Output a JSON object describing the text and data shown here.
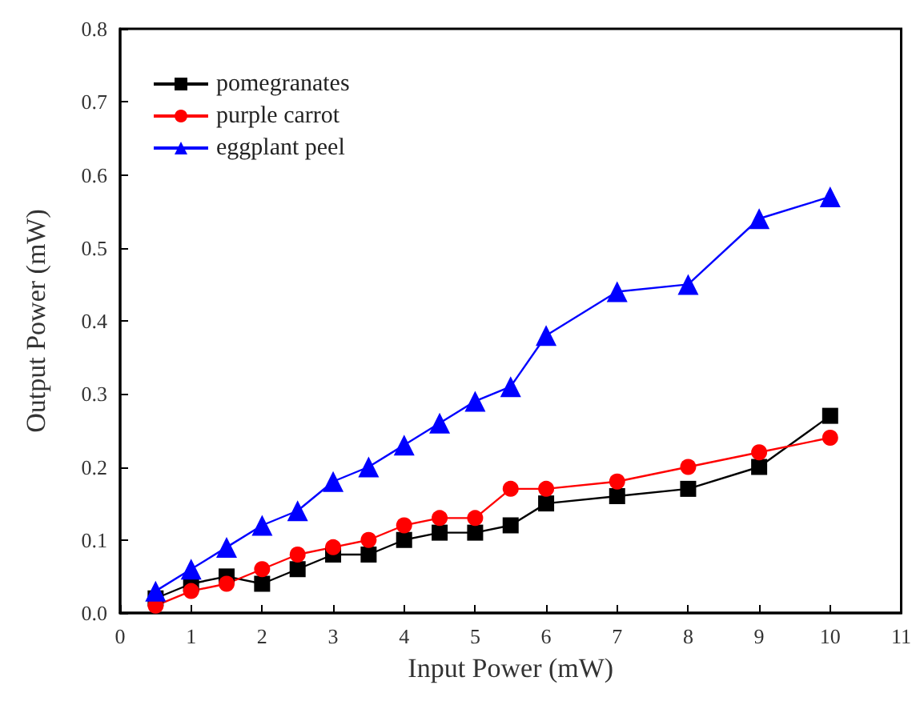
{
  "chart_data": {
    "type": "line",
    "xlabel": "Input Power (mW)",
    "ylabel": "Output Power (mW)",
    "x": [
      0.5,
      1,
      1.5,
      2,
      2.5,
      3,
      3.5,
      4,
      4.5,
      5,
      5.5,
      6,
      7,
      8,
      9,
      10
    ],
    "series": [
      {
        "name": "pomegranates",
        "color": "#000000",
        "marker": "square",
        "values": [
          0.02,
          0.04,
          0.05,
          0.04,
          0.06,
          0.08,
          0.08,
          0.1,
          0.11,
          0.11,
          0.12,
          0.15,
          0.16,
          0.17,
          0.2,
          0.27
        ]
      },
      {
        "name": "purple carrot",
        "color": "#ff0000",
        "marker": "circle",
        "values": [
          0.01,
          0.03,
          0.04,
          0.06,
          0.08,
          0.09,
          0.1,
          0.12,
          0.13,
          0.13,
          0.17,
          0.17,
          0.18,
          0.2,
          0.22,
          0.24
        ]
      },
      {
        "name": "eggplant peel",
        "color": "#0000ff",
        "marker": "triangle",
        "values": [
          0.03,
          0.06,
          0.09,
          0.12,
          0.14,
          0.18,
          0.2,
          0.23,
          0.26,
          0.29,
          0.31,
          0.38,
          0.44,
          0.45,
          0.54,
          0.57
        ]
      }
    ],
    "xlim": [
      0,
      11
    ],
    "xticks": [
      0,
      1,
      2,
      3,
      4,
      5,
      6,
      7,
      8,
      9,
      10,
      11
    ],
    "ylim": [
      0,
      0.8
    ],
    "yticks": [
      {
        "value": 0,
        "label": "0.0"
      },
      {
        "value": 0.1,
        "label": "0.1"
      },
      {
        "value": 0.2,
        "label": "0.2"
      },
      {
        "value": 0.3,
        "label": "0.3"
      },
      {
        "value": 0.4,
        "label": "0.4"
      },
      {
        "value": 0.5,
        "label": "0.5"
      },
      {
        "value": 0.6,
        "label": "0.6"
      },
      {
        "value": 0.7,
        "label": "0.7"
      },
      {
        "value": 0.8,
        "label": "0.8"
      }
    ],
    "grid": false,
    "legend": "top left",
    "line_style": "solid"
  }
}
